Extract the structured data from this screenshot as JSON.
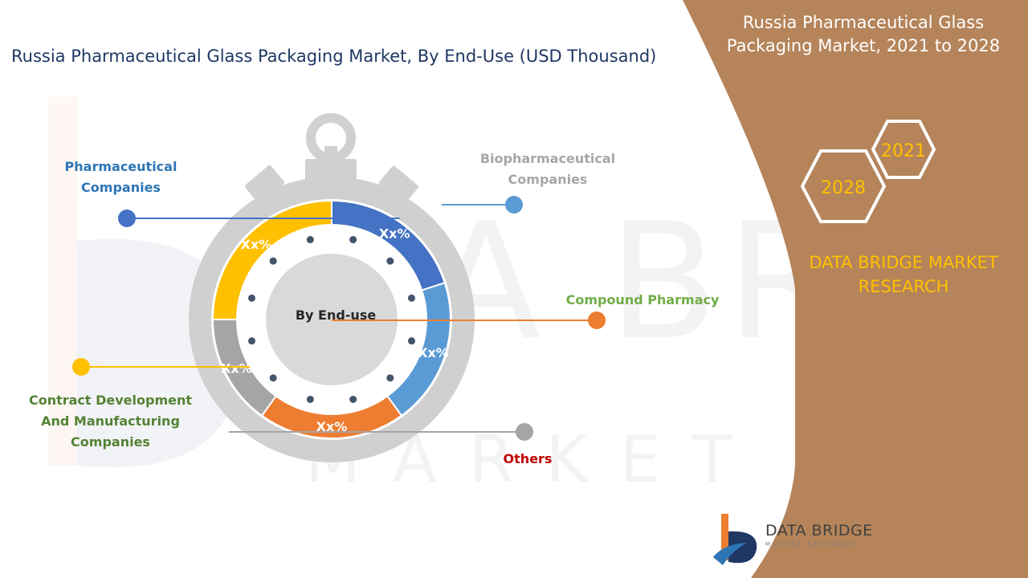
{
  "header": {
    "title": "Russia Pharmaceutical Glass Packaging Market, By End-Use (USD Thousand)"
  },
  "side_panel": {
    "title": "Russia Pharmaceutical Glass Packaging Market, 2021 to 2028",
    "year_start": "2021",
    "year_end": "2028",
    "brand": "DATA BRIDGE MARKET RESEARCH",
    "logo_name": "DATA BRIDGE",
    "logo_tagline": "MARKET RESEARCH",
    "color": "#b5845a"
  },
  "chart_data": {
    "type": "pie",
    "center_label": "By End-use",
    "segments": [
      {
        "label": "Pharmaceutical Companies",
        "value_label": "Xx%",
        "share": 0.2,
        "color": "#4472c4",
        "label_color": "#2e75b6"
      },
      {
        "label": "Biopharmaceutical Companies",
        "value_label": "Xx%",
        "share": 0.2,
        "color": "#5b9bd5",
        "label_color": "#a6a6a6"
      },
      {
        "label": "Compound Pharmacy",
        "value_label": "Xx%",
        "share": 0.2,
        "color": "#ed7d31",
        "label_color": "#70ad47"
      },
      {
        "label": "Others",
        "value_label": "Xx%",
        "share": 0.15,
        "color": "#a5a5a5",
        "label_color": "#c00000"
      },
      {
        "label": "Contract Development And Manufacturing Companies",
        "value_label": "Xx%",
        "share": 0.25,
        "color": "#ffc000",
        "label_color": "#548235"
      }
    ]
  }
}
